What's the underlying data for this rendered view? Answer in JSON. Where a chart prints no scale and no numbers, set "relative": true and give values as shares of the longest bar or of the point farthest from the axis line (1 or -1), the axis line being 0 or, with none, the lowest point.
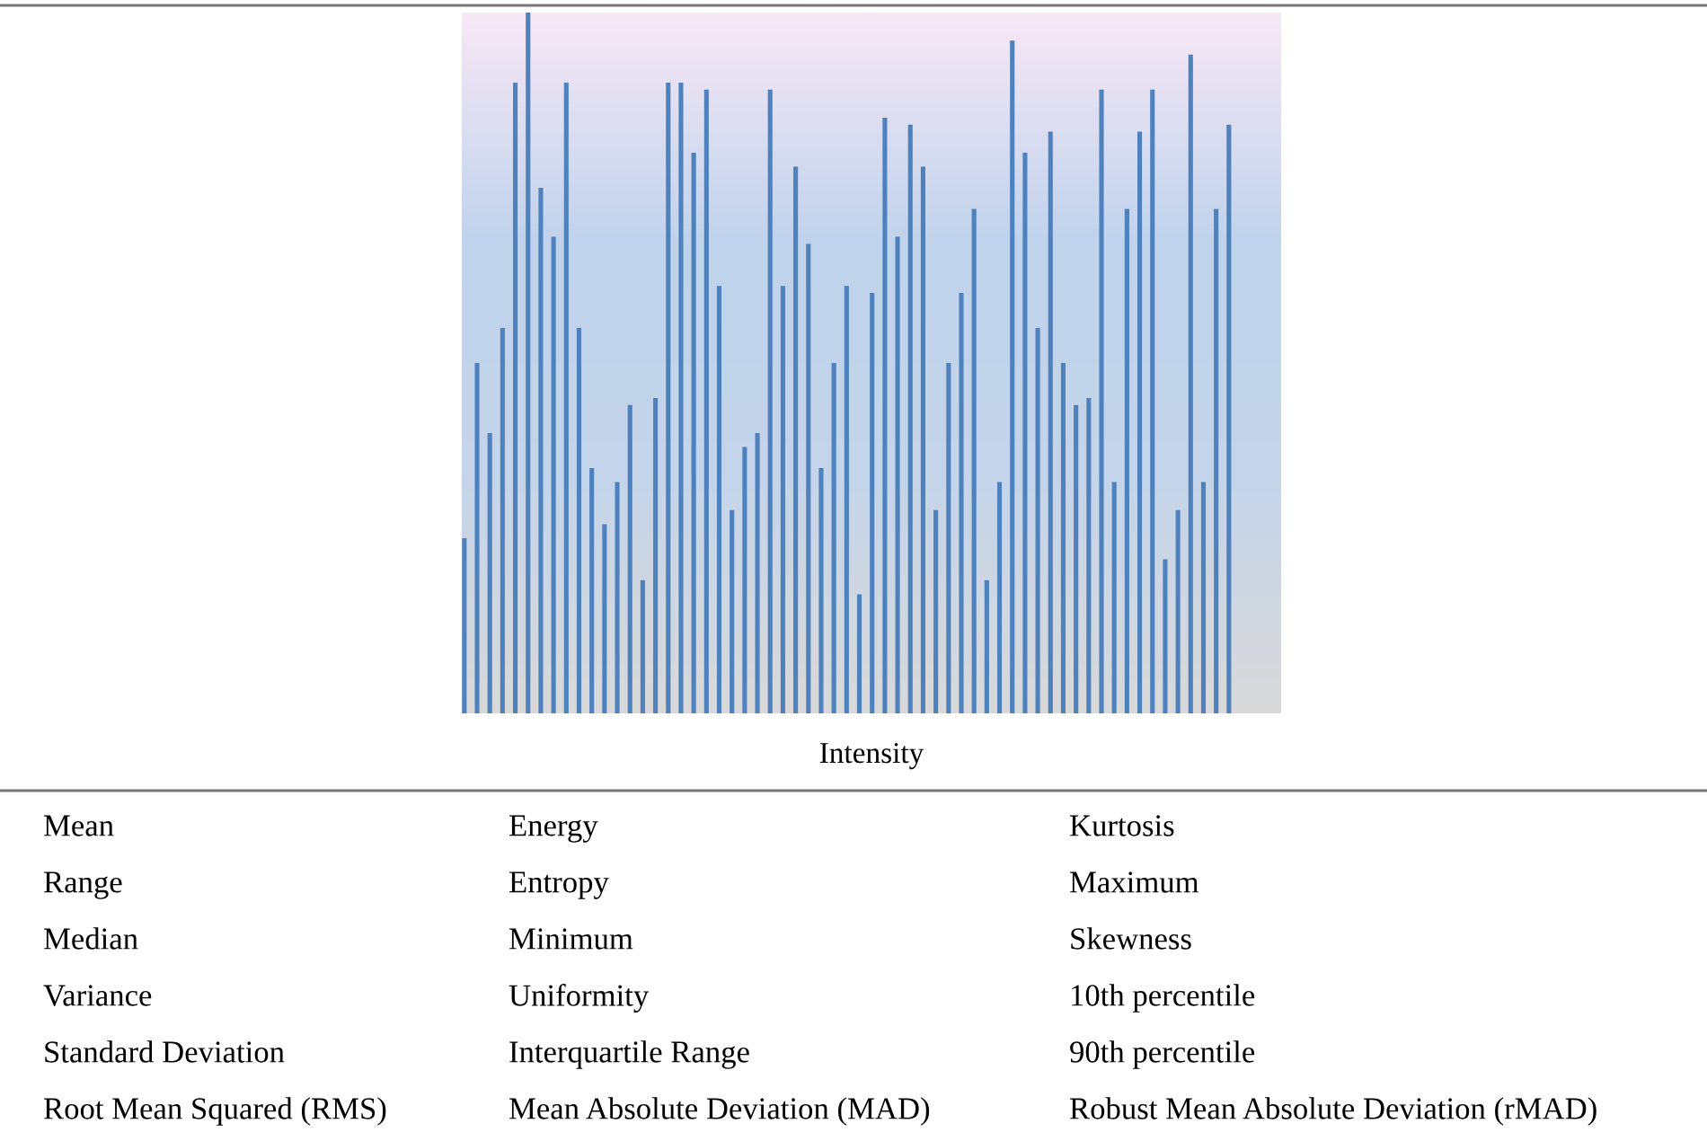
{
  "chart_data": {
    "type": "bar",
    "relative": true,
    "xlabel": "Intensity",
    "color": "#4f81bd",
    "categories": [
      null,
      null,
      null,
      null,
      null,
      null,
      null,
      null,
      null,
      null,
      null,
      null,
      null,
      null,
      null,
      null,
      null,
      null,
      null,
      null,
      null,
      null,
      null,
      null,
      null,
      null,
      null,
      null,
      null,
      null,
      null,
      null,
      null,
      null,
      null,
      null,
      null,
      null,
      null,
      null,
      null,
      null,
      null,
      null,
      null,
      null,
      null,
      null,
      null,
      null,
      null,
      null,
      null,
      null,
      null,
      null,
      null,
      null,
      null,
      null,
      null
    ],
    "values": [
      0.25,
      0.5,
      0.4,
      0.55,
      0.9,
      1,
      0.75,
      0.68,
      0.9,
      0.55,
      0.35,
      0.27,
      0.33,
      0.44,
      0.19,
      0.45,
      0.9,
      0.9,
      0.8,
      0.89,
      0.61,
      0.29,
      0.38,
      0.4,
      0.89,
      0.61,
      0.78,
      0.67,
      0.35,
      0.5,
      0.61,
      0.17,
      0.6,
      0.85,
      0.68,
      0.84,
      0.78,
      0.29,
      0.5,
      0.6,
      0.72,
      0.19,
      0.33,
      0.96,
      0.8,
      0.55,
      0.83,
      0.5,
      0.44,
      0.45,
      0.89,
      0.33,
      0.72,
      0.83,
      0.89,
      0.22,
      0.29,
      0.94,
      0.33,
      0.72,
      0.84
    ],
    "grid": false,
    "legend": false,
    "annotations": [
      "Mean",
      "Energy",
      "Kurtosis",
      "Range",
      "Entropy",
      "Maximum",
      "Median",
      "Minimum",
      "Skewness",
      "Variance",
      "Uniformity",
      "10th percentile",
      "Standard Deviation",
      "Interquartile Range",
      "90th percentile",
      "Root Mean Squared (RMS)",
      "Mean Absolute Deviation (MAD)",
      "Robust Mean Absolute Deviation (rMAD)"
    ]
  }
}
